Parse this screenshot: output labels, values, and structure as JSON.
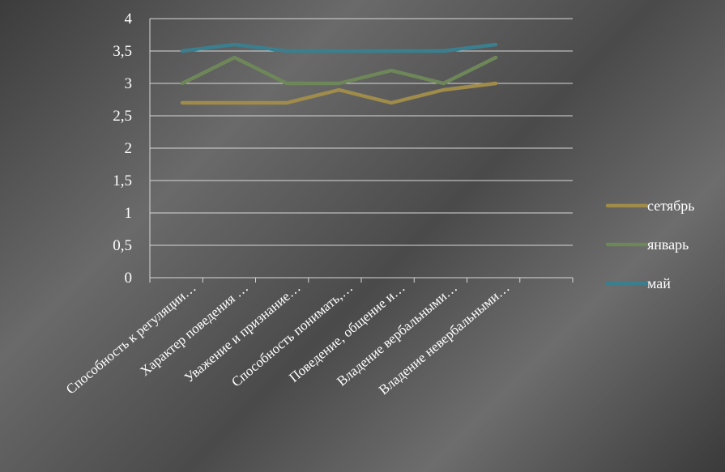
{
  "chart_data": {
    "type": "line",
    "categories": [
      "Способность  к регуляции…",
      "Характер поведения …",
      "Уважение и признание…",
      "Способность понимать,…",
      "Поведение, общение и…",
      "Владение вербальными…",
      "Владение невербальными…"
    ],
    "series": [
      {
        "name": "сетябрь",
        "color": "#a08c4a",
        "values": [
          2.7,
          2.7,
          2.7,
          2.9,
          2.7,
          2.9,
          3.0
        ]
      },
      {
        "name": "январь",
        "color": "#6e8759",
        "values": [
          3.0,
          3.4,
          3.0,
          3.0,
          3.2,
          3.0,
          3.4
        ]
      },
      {
        "name": "май",
        "color": "#3b7f8f",
        "values": [
          3.5,
          3.6,
          3.5,
          3.5,
          3.5,
          3.5,
          3.6
        ]
      }
    ],
    "y_ticks": [
      "0",
      "0,5",
      "1",
      "1,5",
      "2",
      "2,5",
      "3",
      "3,5",
      "4"
    ],
    "ylim": [
      0,
      4
    ],
    "grid": true,
    "legend": "right",
    "title": "",
    "xlabel": "",
    "ylabel": ""
  }
}
